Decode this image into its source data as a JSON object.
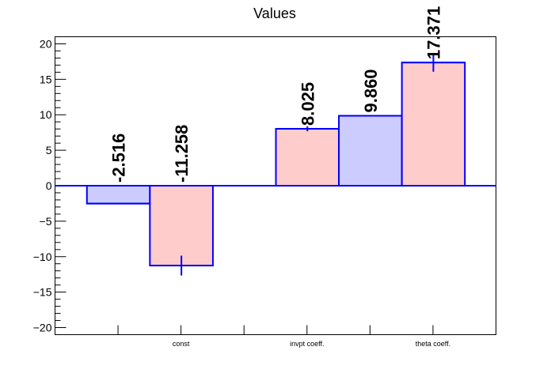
{
  "chart_data": {
    "type": "bar",
    "title": "Values",
    "xlabel": "",
    "ylabel": "",
    "categories": [
      "",
      "const",
      "",
      "invpt coeff.",
      "",
      "theta coeff."
    ],
    "series": [
      {
        "values": [
          -2.516,
          null,
          null,
          null,
          9.86,
          null
        ],
        "errors": [
          0,
          null,
          null,
          null,
          0,
          null
        ],
        "color": "#ccccff"
      },
      {
        "values": [
          null,
          -11.258,
          null,
          8.025,
          null,
          17.371
        ],
        "errors": [
          null,
          1.4,
          null,
          0.35,
          null,
          1.3
        ],
        "color": "#ffcccc"
      }
    ],
    "data_labels": [
      "-2.516",
      "-11.258",
      "8.025",
      "9.860",
      "17.371"
    ],
    "ylim": [
      -21,
      21
    ],
    "yticks": [
      -20,
      -15,
      -10,
      -5,
      0,
      5,
      10,
      15,
      20
    ],
    "yticklabels": [
      "−20",
      "−15",
      "−10",
      "−5",
      "0",
      "5",
      "10",
      "15",
      "20"
    ],
    "grid": false,
    "bar_outline_color": "#0000ff"
  }
}
